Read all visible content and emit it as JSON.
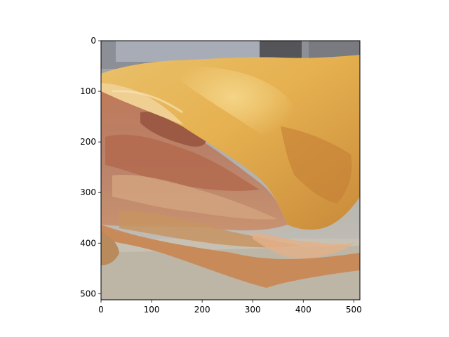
{
  "chart_data": {
    "type": "image",
    "description_subject": "apple-pie-slice",
    "x_ticks": [
      "0",
      "100",
      "200",
      "300",
      "400",
      "500"
    ],
    "y_ticks": [
      "0",
      "100",
      "200",
      "300",
      "400",
      "500"
    ],
    "xlim": [
      0,
      512
    ],
    "ylim": [
      512,
      0
    ],
    "grid": false
  }
}
